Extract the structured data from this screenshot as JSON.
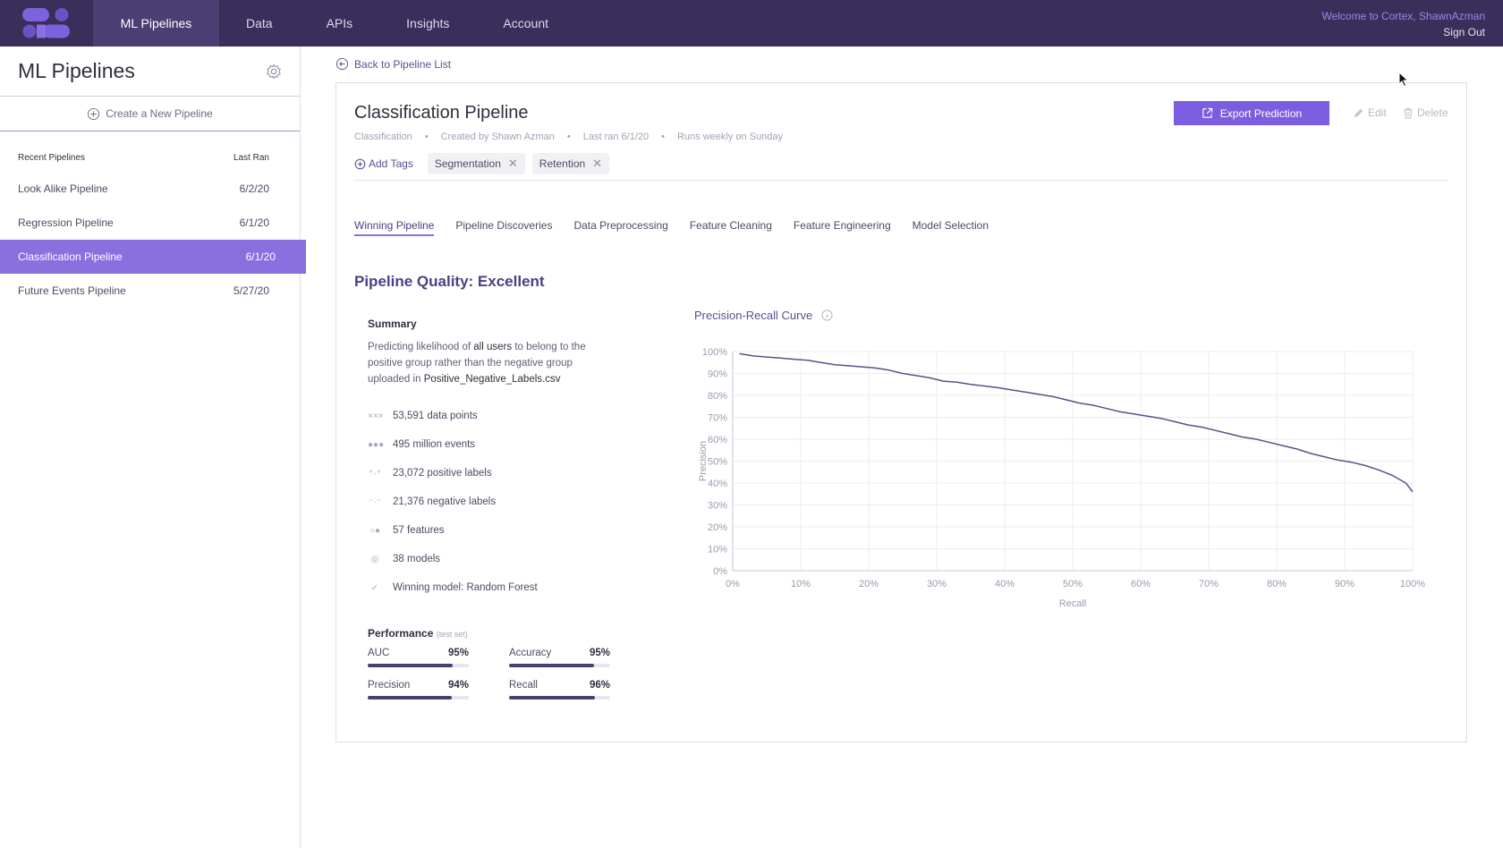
{
  "nav": {
    "items": [
      "ML Pipelines",
      "Data",
      "APIs",
      "Insights",
      "Account"
    ],
    "active_index": 0,
    "welcome": "Welcome to Cortex, ShawnAzman",
    "sign_out": "Sign Out"
  },
  "sidebar": {
    "title": "ML Pipelines",
    "create_label": "Create a New Pipeline",
    "recent_header": "Recent Pipelines",
    "last_ran_header": "Last Ran",
    "pipelines": [
      {
        "name": "Look Alike Pipeline",
        "date": "6/2/20"
      },
      {
        "name": "Regression Pipeline",
        "date": "6/1/20"
      },
      {
        "name": "Classification Pipeline",
        "date": "6/1/20"
      },
      {
        "name": "Future Events Pipeline",
        "date": "5/27/20"
      }
    ],
    "selected_index": 2
  },
  "main": {
    "back_label": "Back to Pipeline List",
    "title": "Classification Pipeline",
    "meta": [
      "Classification",
      "Created by Shawn Azman",
      "Last ran 6/1/20",
      "Runs weekly on Sunday"
    ],
    "add_tags_label": "Add Tags",
    "tags": [
      "Segmentation",
      "Retention"
    ],
    "export_label": "Export Prediction",
    "edit_label": "Edit",
    "delete_label": "Delete",
    "tabs": [
      "Winning Pipeline",
      "Pipeline Discoveries",
      "Data Preprocessing",
      "Feature Cleaning",
      "Feature Engineering",
      "Model Selection"
    ],
    "active_tab": 0,
    "quality_label": "Pipeline Quality: Excellent",
    "summary_title": "Summary",
    "summary_text_1": "Predicting likelihood of",
    "summary_text_bold_1": "all users",
    "summary_text_2": "to belong to the positive group rather than the negative group uploaded in",
    "summary_text_bold_2": "Positive_Negative_Labels.csv",
    "stats": [
      {
        "icon": "data-points-icon",
        "glyph": "×××",
        "text": "53,591 data points"
      },
      {
        "icon": "events-icon",
        "glyph": "●●●",
        "text": "495 million events"
      },
      {
        "icon": "positive-labels-icon",
        "glyph": "⁺·⁺",
        "text": "23,072 positive labels"
      },
      {
        "icon": "negative-labels-icon",
        "glyph": "⁻·⁻",
        "text": "21,376 negative labels"
      },
      {
        "icon": "features-icon",
        "glyph": "○●",
        "text": "57 features"
      },
      {
        "icon": "models-icon",
        "glyph": "◎",
        "text": "38 models"
      },
      {
        "icon": "check-circle-icon",
        "glyph": "✓",
        "text": "Winning model: Random Forest"
      }
    ],
    "performance_title": "Performance",
    "performance_note": "(test set)",
    "metrics": [
      {
        "name": "AUC",
        "value": "95%",
        "fraction": 0.84
      },
      {
        "name": "Accuracy",
        "value": "95%",
        "fraction": 0.84
      },
      {
        "name": "Precision",
        "value": "94%",
        "fraction": 0.83
      },
      {
        "name": "Recall",
        "value": "96%",
        "fraction": 0.85
      }
    ],
    "chart_title": "Precision-Recall Curve"
  },
  "colors": {
    "nav_bg": "#3a2f5b",
    "accent": "#8a6fdf",
    "button": "#7b5ee0",
    "curve": "#5b4f8c"
  },
  "chart_data": {
    "type": "line",
    "title": "Precision-Recall Curve",
    "xlabel": "Recall",
    "ylabel": "Precision",
    "xlim": [
      0,
      100
    ],
    "ylim": [
      0,
      100
    ],
    "x_ticks": [
      "0%",
      "10%",
      "20%",
      "30%",
      "40%",
      "50%",
      "60%",
      "70%",
      "80%",
      "90%",
      "100%"
    ],
    "y_ticks": [
      "0%",
      "10%",
      "20%",
      "30%",
      "40%",
      "50%",
      "60%",
      "70%",
      "80%",
      "90%",
      "100%"
    ],
    "grid": true,
    "series": [
      {
        "x": [
          1,
          3,
          5,
          7,
          9,
          11,
          13,
          15,
          17,
          19,
          21,
          23,
          25,
          27,
          29,
          31,
          33,
          35,
          37,
          39,
          41,
          43,
          45,
          47,
          49,
          51,
          53,
          55,
          57,
          59,
          61,
          63,
          65,
          67,
          69,
          71,
          73,
          75,
          77,
          79,
          81,
          83,
          85,
          87,
          89,
          91,
          93,
          95,
          97,
          99,
          100
        ],
        "y": [
          99,
          98,
          97.5,
          97,
          96.5,
          96,
          95,
          94,
          93.5,
          93,
          92.5,
          91.5,
          90,
          89,
          88,
          86.5,
          86,
          85,
          84.3,
          83.5,
          82.5,
          81.5,
          80.5,
          79.5,
          78,
          76.5,
          75.5,
          74,
          72.5,
          71.5,
          70.5,
          69.5,
          68,
          66.5,
          65.5,
          64,
          62.5,
          61,
          60,
          58.5,
          57,
          55.5,
          53.5,
          52,
          50.5,
          49.5,
          48,
          46,
          43.5,
          40,
          36
        ]
      }
    ]
  }
}
